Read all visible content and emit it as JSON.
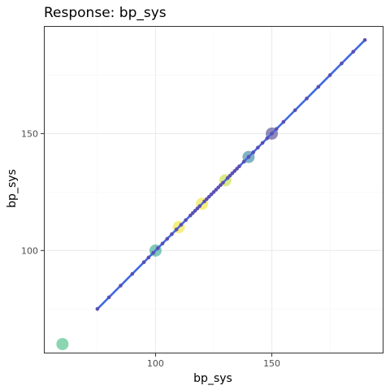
{
  "chart_data": {
    "type": "scatter",
    "title": "Response: bp_sys",
    "xlabel": "bp_sys",
    "ylabel": "bp_sys",
    "xlim": [
      52,
      198
    ],
    "ylim": [
      56,
      196
    ],
    "x_ticks": [
      100,
      150
    ],
    "y_ticks": [
      100,
      150
    ],
    "grid": true,
    "colors": {
      "fit_line": "#4169e1",
      "points": "#5a4fb3",
      "panel_border": "#333333",
      "grid_major": "#ebebeb",
      "grid_minor": "#f5f5f5"
    },
    "fit_line": {
      "x": [
        75,
        190
      ],
      "y": [
        75,
        190
      ]
    },
    "highlight_points": [
      {
        "x": 60,
        "y": 60,
        "color": "#3dbb7f"
      },
      {
        "x": 100,
        "y": 100,
        "color": "#2ba58d"
      },
      {
        "x": 110,
        "y": 110,
        "color": "#f0e52a"
      },
      {
        "x": 120,
        "y": 120,
        "color": "#f0e52a"
      },
      {
        "x": 130,
        "y": 130,
        "color": "#c6dd35"
      },
      {
        "x": 140,
        "y": 140,
        "color": "#2b7f9e"
      },
      {
        "x": 150,
        "y": 150,
        "color": "#46408a"
      }
    ],
    "points": [
      {
        "x": 75,
        "y": 75
      },
      {
        "x": 80,
        "y": 80
      },
      {
        "x": 85,
        "y": 85
      },
      {
        "x": 90,
        "y": 90
      },
      {
        "x": 95,
        "y": 95
      },
      {
        "x": 97,
        "y": 97
      },
      {
        "x": 99,
        "y": 99
      },
      {
        "x": 101,
        "y": 101
      },
      {
        "x": 103,
        "y": 103
      },
      {
        "x": 105,
        "y": 105
      },
      {
        "x": 107,
        "y": 107
      },
      {
        "x": 109,
        "y": 109
      },
      {
        "x": 111,
        "y": 111
      },
      {
        "x": 113,
        "y": 113
      },
      {
        "x": 115,
        "y": 115
      },
      {
        "x": 116,
        "y": 116
      },
      {
        "x": 117,
        "y": 117
      },
      {
        "x": 118,
        "y": 118
      },
      {
        "x": 119,
        "y": 119
      },
      {
        "x": 121,
        "y": 121
      },
      {
        "x": 122,
        "y": 122
      },
      {
        "x": 123,
        "y": 123
      },
      {
        "x": 124,
        "y": 124
      },
      {
        "x": 125,
        "y": 125
      },
      {
        "x": 126,
        "y": 126
      },
      {
        "x": 127,
        "y": 127
      },
      {
        "x": 128,
        "y": 128
      },
      {
        "x": 129,
        "y": 129
      },
      {
        "x": 131,
        "y": 131
      },
      {
        "x": 132,
        "y": 132
      },
      {
        "x": 133,
        "y": 133
      },
      {
        "x": 134,
        "y": 134
      },
      {
        "x": 135,
        "y": 135
      },
      {
        "x": 136,
        "y": 136
      },
      {
        "x": 138,
        "y": 138
      },
      {
        "x": 140,
        "y": 140
      },
      {
        "x": 142,
        "y": 142
      },
      {
        "x": 144,
        "y": 144
      },
      {
        "x": 146,
        "y": 146
      },
      {
        "x": 148,
        "y": 148
      },
      {
        "x": 150,
        "y": 150
      },
      {
        "x": 152,
        "y": 152
      },
      {
        "x": 155,
        "y": 155
      },
      {
        "x": 160,
        "y": 160
      },
      {
        "x": 165,
        "y": 165
      },
      {
        "x": 170,
        "y": 170
      },
      {
        "x": 175,
        "y": 175
      },
      {
        "x": 180,
        "y": 180
      },
      {
        "x": 185,
        "y": 185
      },
      {
        "x": 190,
        "y": 190
      }
    ]
  }
}
